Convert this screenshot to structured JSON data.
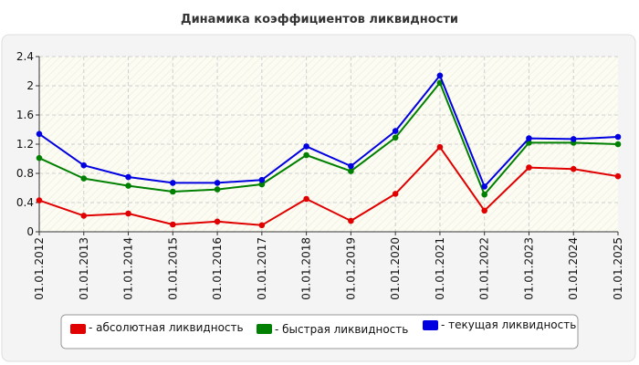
{
  "chart_data": {
    "type": "line",
    "title": "Динамика коэффициентов ликвидности",
    "xlabel": "",
    "ylabel": "",
    "categories": [
      "01.01.2012",
      "01.01.2013",
      "01.01.2014",
      "01.01.2015",
      "01.01.2016",
      "01.01.2017",
      "01.01.2018",
      "01.01.2019",
      "01.01.2020",
      "01.01.2021",
      "01.01.2022",
      "01.01.2023",
      "01.01.2024",
      "01.01.2025"
    ],
    "y_ticks": [
      "0",
      "0.4",
      "0.8",
      "1.2",
      "1.6",
      "2",
      "2.4"
    ],
    "ylim": [
      0,
      2.4
    ],
    "grid": true,
    "legend_position": "bottom",
    "series": [
      {
        "name": "- абсолютная ликвидность",
        "color": "#e00000",
        "values": [
          0.43,
          0.22,
          0.25,
          0.1,
          0.14,
          0.09,
          0.45,
          0.15,
          0.52,
          1.16,
          0.29,
          0.88,
          0.86,
          0.76
        ]
      },
      {
        "name": "- быстрая ликвидность",
        "color": "#008000",
        "values": [
          1.01,
          0.73,
          0.63,
          0.55,
          0.58,
          0.65,
          1.05,
          0.83,
          1.29,
          2.04,
          0.51,
          1.22,
          1.22,
          1.2
        ]
      },
      {
        "name": "- текущая ликвидность",
        "color": "#0000e0",
        "values": [
          1.34,
          0.91,
          0.75,
          0.67,
          0.67,
          0.71,
          1.17,
          0.9,
          1.38,
          2.14,
          0.62,
          1.28,
          1.27,
          1.3
        ]
      }
    ]
  }
}
